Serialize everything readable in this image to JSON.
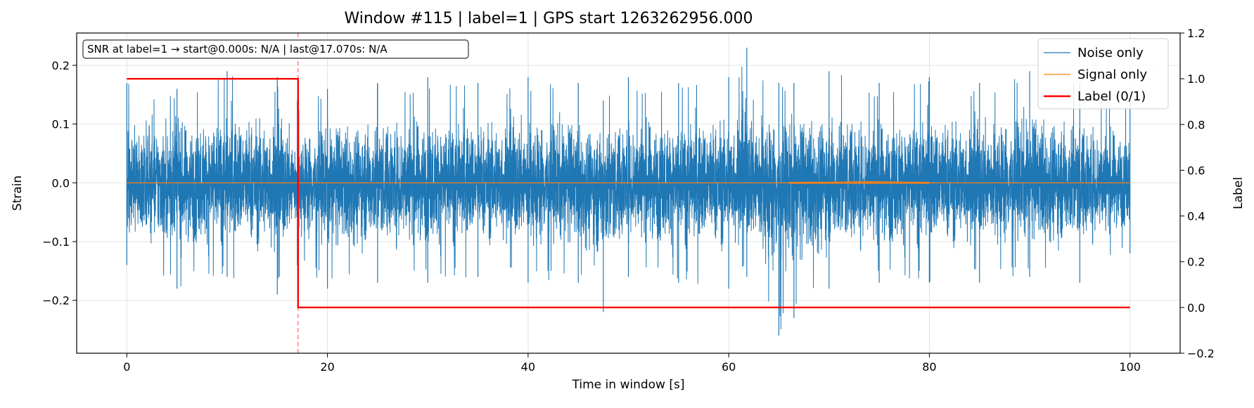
{
  "chart_data": {
    "type": "line",
    "title": "Window #115  |  label=1  |  GPS start 1263262956.000",
    "xlabel": "Time in window [s]",
    "ylabel": "Strain",
    "y2label": "Label",
    "xlim": [
      -5,
      105
    ],
    "ylim": [
      -0.29,
      0.255
    ],
    "y2lim": [
      -0.2,
      1.2
    ],
    "x_ticks": [
      0,
      20,
      40,
      60,
      80,
      100
    ],
    "x_tick_labels": [
      "0",
      "20",
      "40",
      "60",
      "80",
      "100"
    ],
    "y_ticks": [
      -0.2,
      -0.1,
      0.0,
      0.1,
      0.2
    ],
    "y_tick_labels": [
      "−0.2",
      "−0.1",
      "0.0",
      "0.1",
      "0.2"
    ],
    "y2_ticks": [
      -0.2,
      0.0,
      0.2,
      0.4,
      0.6,
      0.8,
      1.0,
      1.2
    ],
    "y2_tick_labels": [
      "−0.2",
      "0.0",
      "0.2",
      "0.4",
      "0.6",
      "0.8",
      "1.0",
      "1.2"
    ],
    "grid": true,
    "legend_position": "top-right",
    "annotation": "SNR at label=1 → start@0.000s: N/A | last@17.070s: N/A",
    "vline_x": 17.07,
    "series": [
      {
        "name": "Noise only",
        "axis": "left",
        "color": "#1f77b4",
        "x_range": [
          0,
          100
        ],
        "envelope": {
          "x": [
            0,
            5,
            10,
            15,
            17,
            20,
            25,
            30,
            35,
            40,
            45,
            47.5,
            50,
            55,
            60,
            61.8,
            65,
            66.5,
            70,
            75,
            80,
            85,
            90,
            95,
            100
          ],
          "upper": [
            0.17,
            0.16,
            0.19,
            0.18,
            0.14,
            0.16,
            0.17,
            0.18,
            0.17,
            0.18,
            0.17,
            0.14,
            0.18,
            0.17,
            0.18,
            0.23,
            0.17,
            0.17,
            0.19,
            0.17,
            0.18,
            0.17,
            0.19,
            0.17,
            0.14
          ],
          "lower": [
            -0.14,
            -0.18,
            -0.16,
            -0.19,
            -0.14,
            -0.18,
            -0.17,
            -0.17,
            -0.16,
            -0.17,
            -0.17,
            -0.22,
            -0.16,
            -0.17,
            -0.18,
            -0.16,
            -0.26,
            -0.23,
            -0.18,
            -0.17,
            -0.17,
            -0.17,
            -0.16,
            -0.17,
            -0.12
          ]
        }
      },
      {
        "name": "Signal only",
        "axis": "left",
        "color": "#ff7f0e",
        "x": [
          0,
          66,
          70,
          74,
          78,
          80,
          100
        ],
        "y": [
          0,
          0,
          0.001,
          0.002,
          0.001,
          0,
          0
        ]
      },
      {
        "name": "Label (0/1)",
        "axis": "right",
        "color": "#ff0000",
        "step_x": [
          0,
          17.07,
          17.07,
          100
        ],
        "step_y": [
          1,
          1,
          0,
          0
        ]
      }
    ]
  }
}
